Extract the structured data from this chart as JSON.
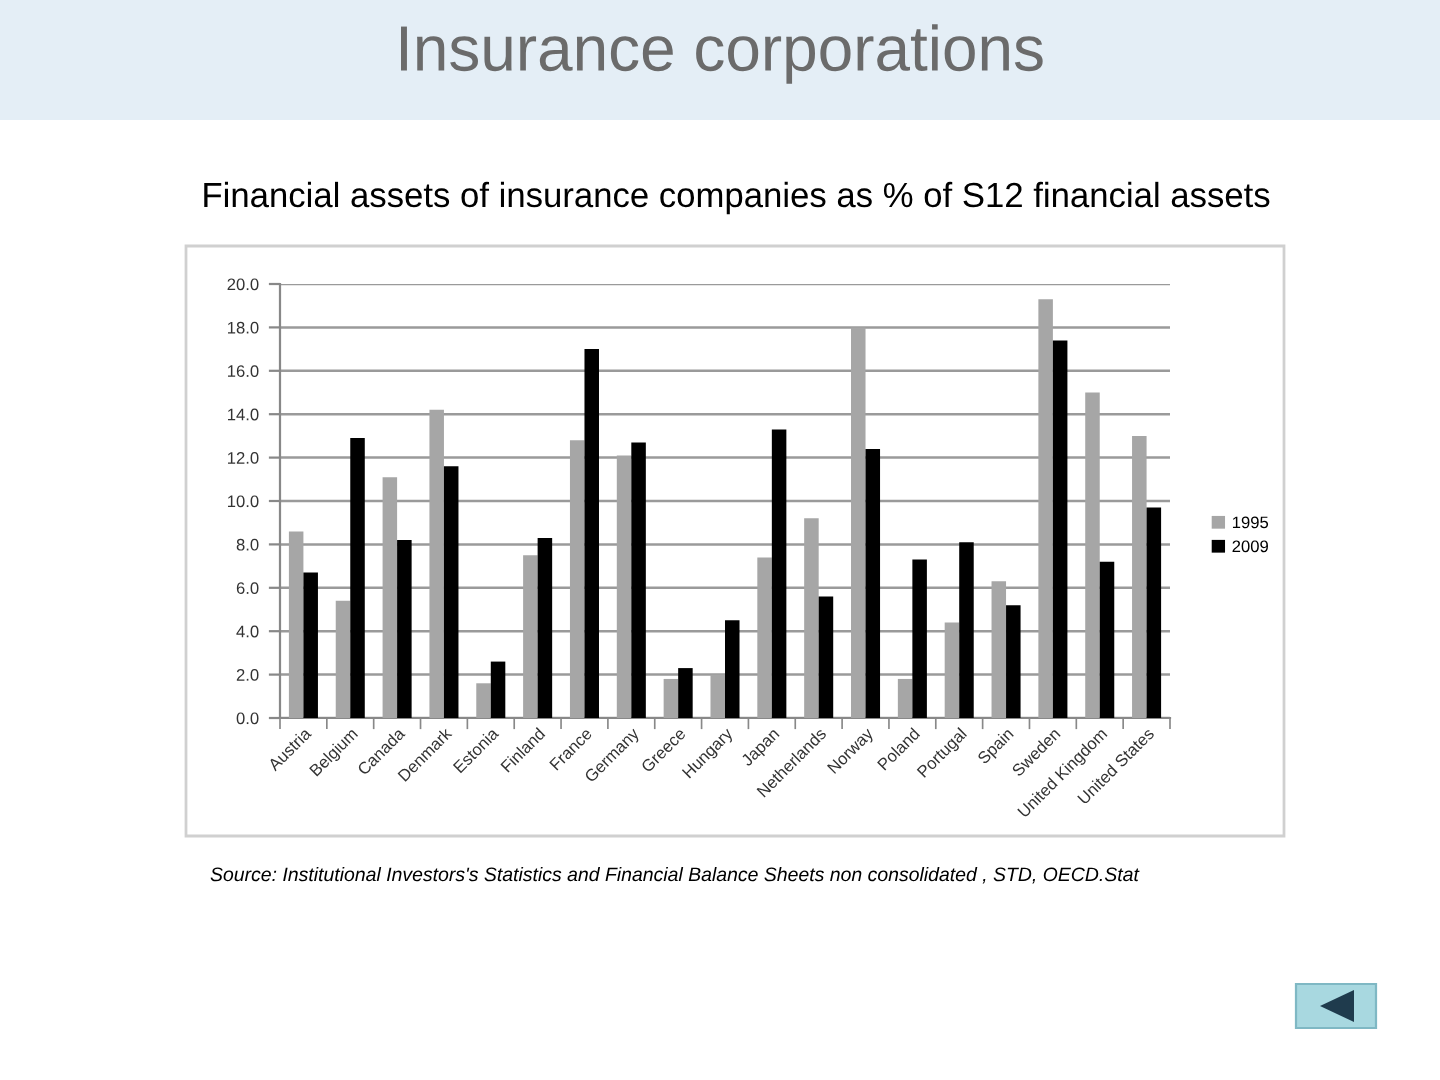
{
  "chart_data": {
    "type": "bar",
    "title": "Insurance corporations",
    "subtitle": "Financial assets of insurance companies as % of S12 financial assets",
    "categories": [
      "Austria",
      "Belgium",
      "Canada",
      "Denmark",
      "Estonia",
      "Finland",
      "France",
      "Germany",
      "Greece",
      "Hungary",
      "Japan",
      "Netherlands",
      "Norway",
      "Poland",
      "Portugal",
      "Spain",
      "Sweden",
      "United Kingdom",
      "United States"
    ],
    "series": [
      {
        "name": "1995",
        "color": "#a6a6a6",
        "values": [
          8.6,
          5.4,
          11.1,
          14.2,
          1.6,
          7.5,
          12.8,
          12.1,
          1.8,
          2.0,
          7.4,
          9.2,
          18.0,
          1.8,
          4.4,
          6.3,
          19.3,
          15.0,
          13.0
        ]
      },
      {
        "name": "2009",
        "color": "#000000",
        "values": [
          6.7,
          12.9,
          8.2,
          11.6,
          2.6,
          8.3,
          17.0,
          12.7,
          2.3,
          4.5,
          13.3,
          5.6,
          12.4,
          7.3,
          8.1,
          5.2,
          17.4,
          7.2,
          9.7
        ]
      }
    ],
    "ylim": [
      0,
      20
    ],
    "yticks": [
      {
        "value": 0,
        "label": "0.0"
      },
      {
        "value": 2,
        "label": "2.0"
      },
      {
        "value": 4,
        "label": "4.0"
      },
      {
        "value": 6,
        "label": "6.0"
      },
      {
        "value": 8,
        "label": "8.0"
      },
      {
        "value": 10,
        "label": "10.0"
      },
      {
        "value": 12,
        "label": "12.0"
      },
      {
        "value": 14,
        "label": "14.0"
      },
      {
        "value": 16,
        "label": "16.0"
      },
      {
        "value": 18,
        "label": "18.0"
      },
      {
        "value": 20,
        "label": "20.0"
      }
    ],
    "grid": "y",
    "legend": "right",
    "annotations": [
      "Source: Institutional Investors's Statistics and Financial Balance Sheets non consolidated , STD, OECD.Stat"
    ]
  }
}
